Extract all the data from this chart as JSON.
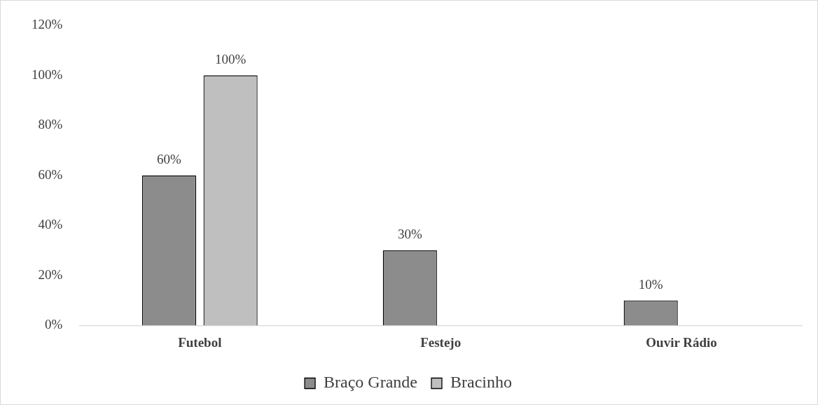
{
  "chart_data": {
    "type": "bar",
    "categories": [
      "Futebol",
      "Festejo",
      "Ouvir Rádio"
    ],
    "series": [
      {
        "name": "Braço Grande",
        "color": "#8c8c8c",
        "values": [
          60,
          30,
          10
        ],
        "value_labels": [
          "60%",
          "30%",
          "10%"
        ]
      },
      {
        "name": "Bracinho",
        "color": "#bfbfbf",
        "values": [
          100,
          null,
          null
        ],
        "value_labels": [
          "100%",
          null,
          null
        ]
      }
    ],
    "ylim": [
      0,
      120
    ],
    "yticks": [
      {
        "value": 0,
        "label": "0%"
      },
      {
        "value": 20,
        "label": "20%"
      },
      {
        "value": 40,
        "label": "40%"
      },
      {
        "value": 60,
        "label": "60%"
      },
      {
        "value": 80,
        "label": "80%"
      },
      {
        "value": 100,
        "label": "100%"
      },
      {
        "value": 120,
        "label": "120%"
      }
    ],
    "grid": false,
    "legend": "bottom"
  }
}
